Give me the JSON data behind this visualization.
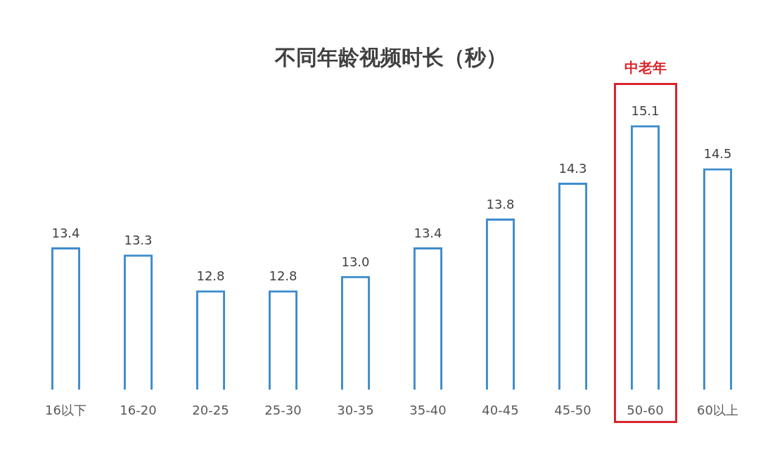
{
  "chart_data": {
    "type": "bar",
    "title": "不同年龄视频时长（秒）",
    "categories": [
      "16以下",
      "16-20",
      "20-25",
      "25-30",
      "30-35",
      "35-40",
      "40-45",
      "45-50",
      "50-60",
      "60以上"
    ],
    "values": [
      13.4,
      13.3,
      12.8,
      12.8,
      13.0,
      13.4,
      13.8,
      14.3,
      15.1,
      14.5
    ],
    "value_labels": [
      "13.4",
      "13.3",
      "12.8",
      "12.8",
      "13.0",
      "13.4",
      "13.8",
      "14.3",
      "15.1",
      "14.5"
    ],
    "color": "#3d8ccc",
    "tick_labels": "x",
    "grid": false,
    "legend": false,
    "annotations": [
      "中老年"
    ]
  }
}
